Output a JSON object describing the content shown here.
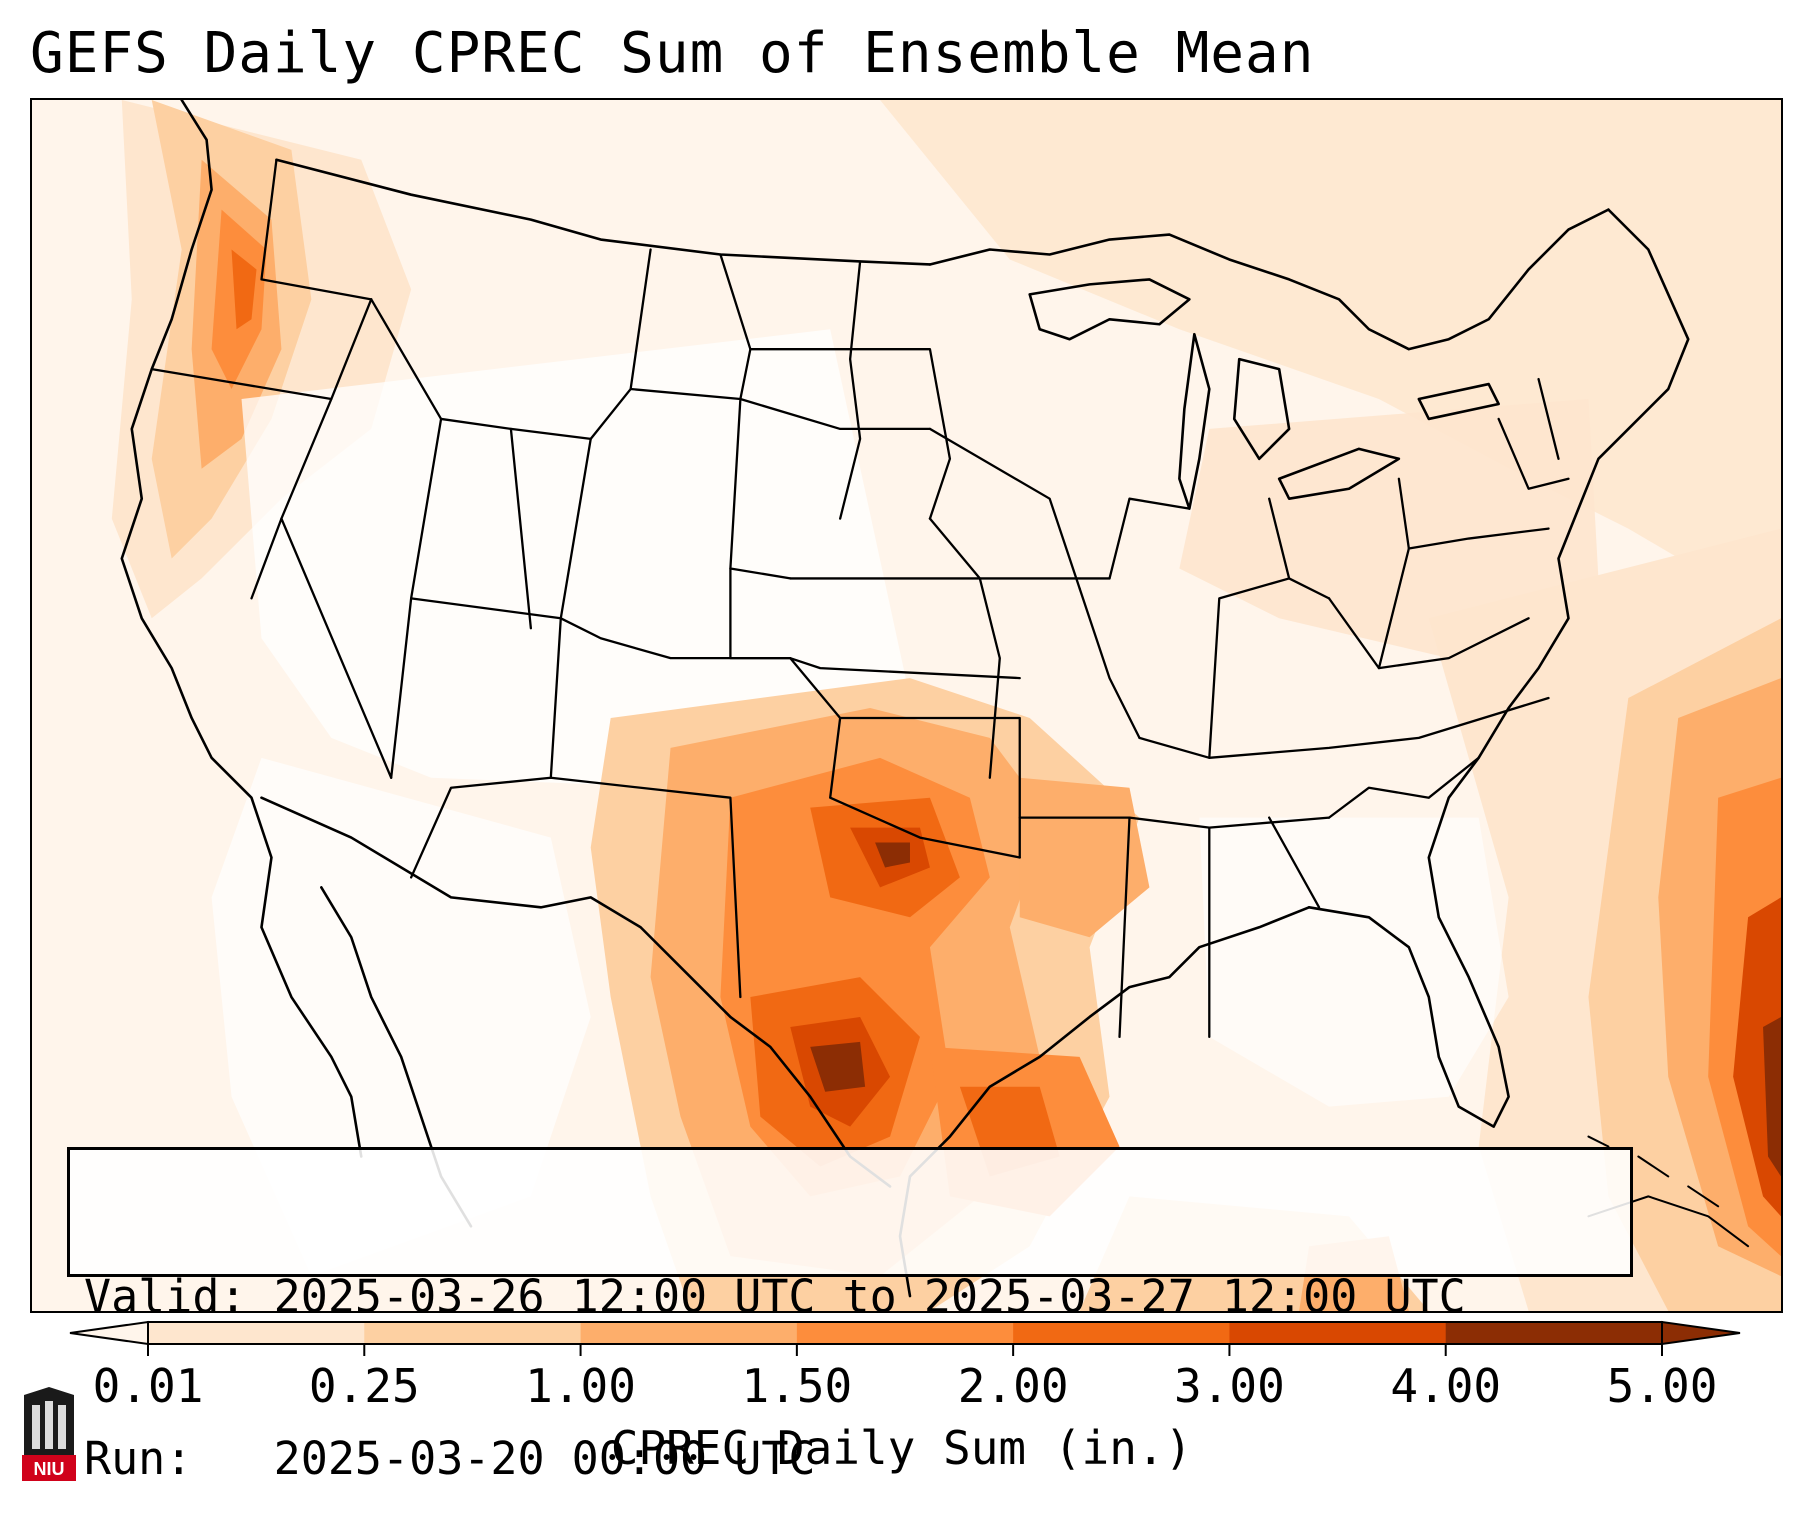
{
  "title": "GEFS Daily CPREC Sum of Ensemble Mean",
  "info": {
    "valid_label": "Valid:",
    "valid_value": "2025-03-26 12:00 UTC to 2025-03-27 12:00 UTC",
    "run_label": "Run:",
    "run_value": "2025-03-20 00:00 UTC"
  },
  "colorbar": {
    "label": "CPREC Daily Sum (in.)",
    "ticks": [
      "0.01",
      "0.25",
      "1.00",
      "1.50",
      "2.00",
      "3.00",
      "4.00",
      "5.00"
    ],
    "colors": [
      "#fff5eb",
      "#fee6ce",
      "#fdd0a2",
      "#fdae6b",
      "#fd8d3c",
      "#f16913",
      "#d94801",
      "#8c2d04"
    ],
    "extend": "both"
  },
  "logo": {
    "text": "NIU",
    "name": "niu-logo-icon"
  },
  "map": {
    "projection": "Lambert Conformal",
    "region": "Continental United States",
    "borders": [
      "coastlines",
      "country borders",
      "state borders"
    ]
  }
}
